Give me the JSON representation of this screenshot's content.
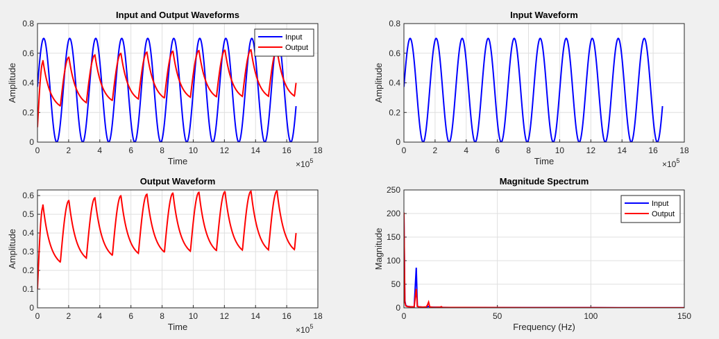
{
  "chart_data": [
    {
      "type": "line",
      "title": "Input and Output Waveforms",
      "xlabel": "Time",
      "ylabel": "Amplitude",
      "xlim": [
        0,
        18
      ],
      "ylim": [
        0,
        0.8
      ],
      "xticks": [
        "0",
        "2",
        "4",
        "6",
        "8",
        "10",
        "12",
        "14",
        "16",
        "18"
      ],
      "yticks": [
        "0",
        "0.2",
        "0.4",
        "0.6",
        "0.8"
      ],
      "x_exponent": "×10",
      "x_exponent_power": "5",
      "grid": true,
      "legend": "top-right",
      "series": [
        {
          "name": "Input",
          "color": "#0000ff",
          "model": "input",
          "x_end": 16.6
        },
        {
          "name": "Output",
          "color": "#ff0000",
          "model": "output",
          "x_end": 16.6
        }
      ]
    },
    {
      "type": "line",
      "title": "Input Waveform",
      "xlabel": "Time",
      "ylabel": "Amplitude",
      "xlim": [
        0,
        18
      ],
      "ylim": [
        0,
        0.8
      ],
      "xticks": [
        "0",
        "2",
        "4",
        "6",
        "8",
        "10",
        "12",
        "14",
        "16",
        "18"
      ],
      "yticks": [
        "0",
        "0.2",
        "0.4",
        "0.6",
        "0.8"
      ],
      "x_exponent": "×10",
      "x_exponent_power": "5",
      "grid": true,
      "series": [
        {
          "color": "#0000ff",
          "model": "input",
          "x_end": 16.6
        }
      ]
    },
    {
      "type": "line",
      "title": "Output Waveform",
      "xlabel": "Time",
      "ylabel": "Amplitude",
      "xlim": [
        0,
        18
      ],
      "ylim": [
        0,
        0.63
      ],
      "xticks": [
        "0",
        "2",
        "4",
        "6",
        "8",
        "10",
        "12",
        "14",
        "16",
        "18"
      ],
      "yticks": [
        "0",
        "0.1",
        "0.2",
        "0.3",
        "0.4",
        "0.5",
        "0.6"
      ],
      "x_exponent": "×10",
      "x_exponent_power": "5",
      "grid": true,
      "series": [
        {
          "color": "#ff0000",
          "model": "output",
          "x_end": 16.6
        }
      ]
    },
    {
      "type": "line",
      "title": "Magnitude Spectrum",
      "xlabel": "Frequency (Hz)",
      "ylabel": "Magnitude",
      "xlim": [
        0,
        150
      ],
      "ylim": [
        0,
        250
      ],
      "xticks": [
        "0",
        "50",
        "100",
        "150"
      ],
      "yticks": [
        "0",
        "50",
        "100",
        "150",
        "200",
        "250"
      ],
      "grid": true,
      "legend": "top-right",
      "series": [
        {
          "name": "Input",
          "color": "#0000ff",
          "points": [
            [
              0,
              198
            ],
            [
              0.5,
              15
            ],
            [
              1,
              5
            ],
            [
              2,
              3
            ],
            [
              4,
              2
            ],
            [
              5.5,
              2
            ],
            [
              6,
              40
            ],
            [
              6.6,
              85
            ],
            [
              7.2,
              3
            ],
            [
              8,
              2
            ],
            [
              10,
              1.5
            ],
            [
              12,
              1.5
            ],
            [
              13,
              3
            ],
            [
              14,
              1.5
            ],
            [
              20,
              1
            ],
            [
              30,
              0.5
            ],
            [
              50,
              0.4
            ],
            [
              100,
              0.3
            ],
            [
              150,
              0.2
            ]
          ]
        },
        {
          "name": "Output",
          "color": "#ff0000",
          "points": [
            [
              0,
              202
            ],
            [
              0.5,
              12
            ],
            [
              1,
              4
            ],
            [
              2,
              2.5
            ],
            [
              4,
              2
            ],
            [
              5.5,
              2
            ],
            [
              6,
              20
            ],
            [
              6.6,
              40
            ],
            [
              7.2,
              3
            ],
            [
              8,
              2
            ],
            [
              10,
              1.5
            ],
            [
              12,
              2
            ],
            [
              12.6,
              6
            ],
            [
              13.2,
              12
            ],
            [
              13.8,
              2
            ],
            [
              16,
              1
            ],
            [
              19.5,
              1.5
            ],
            [
              20,
              2.5
            ],
            [
              20.5,
              1
            ],
            [
              30,
              0.8
            ],
            [
              50,
              0.5
            ],
            [
              100,
              0.3
            ],
            [
              150,
              0.2
            ]
          ]
        }
      ]
    }
  ]
}
